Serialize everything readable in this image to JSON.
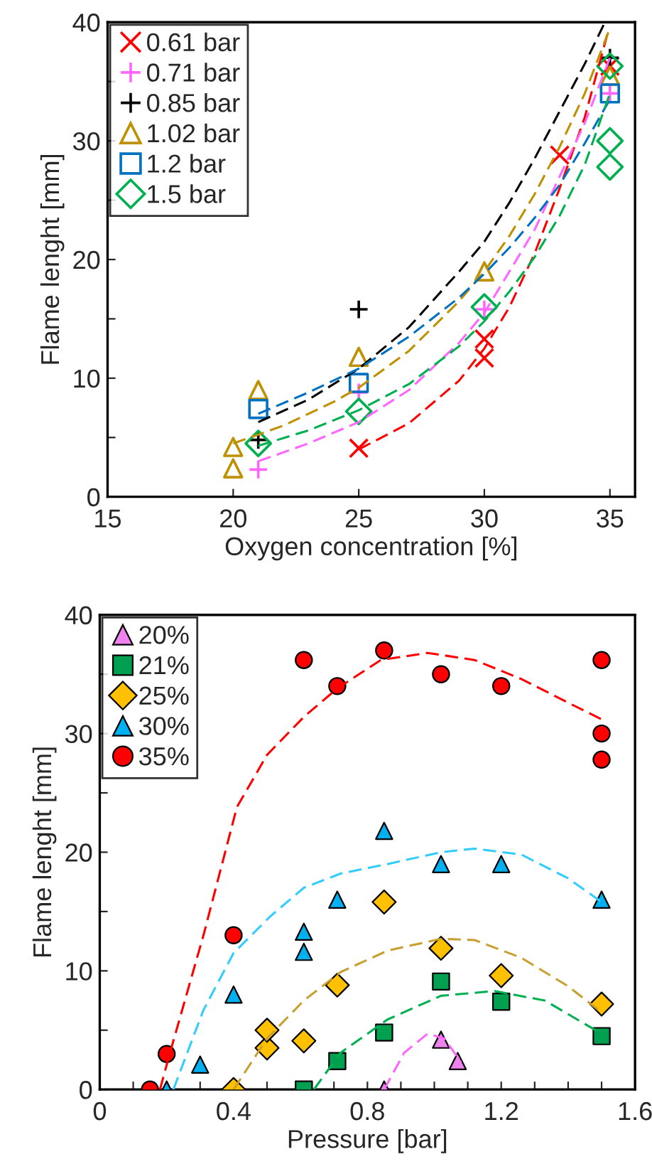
{
  "chart_data": [
    {
      "type": "scatter",
      "xlabel": "Oxygen concentration [%]",
      "ylabel": "Flame lenght [mm]",
      "xlim": [
        15,
        36
      ],
      "xticks": [
        15,
        20,
        25,
        30,
        35
      ],
      "ylim": [
        0,
        40
      ],
      "yticks": [
        0,
        {
          "value": 5,
          "label": null
        },
        10,
        {
          "value": 15,
          "label": null
        },
        20,
        {
          "value": 25,
          "label": null
        },
        30,
        {
          "value": 35,
          "label": null
        },
        40
      ],
      "grid": false,
      "legend": "top left",
      "series": [
        {
          "name": "0.61 bar",
          "color": "#ff0000",
          "marker": "x",
          "x": [
            25,
            30,
            30,
            33,
            35
          ],
          "values": [
            4.1,
            13.3,
            11.7,
            28.8,
            36.3
          ]
        },
        {
          "name": "0.71 bar",
          "color": "#ff66ff",
          "marker": "plus",
          "x": [
            21,
            25,
            30,
            35
          ],
          "values": [
            2.3,
            8.8,
            15.8,
            34
          ]
        },
        {
          "name": "0.85 bar",
          "color": "#000000",
          "marker": "plus",
          "x": [
            21,
            25,
            35
          ],
          "values": [
            4.8,
            15.8,
            37
          ]
        },
        {
          "name": "1.02 bar",
          "color": "#bf9000",
          "marker": "triangle",
          "x": [
            20,
            20,
            21,
            25,
            30,
            35
          ],
          "values": [
            4.2,
            2.4,
            9.0,
            11.8,
            19,
            35.5
          ]
        },
        {
          "name": "1.2 bar",
          "color": "#0070c0",
          "marker": "square",
          "x": [
            21,
            25,
            35
          ],
          "values": [
            7.4,
            9.6,
            34
          ]
        },
        {
          "name": "1.5 bar",
          "color": "#00b050",
          "marker": "diamond",
          "x": [
            21,
            25,
            30,
            35,
            35,
            35
          ],
          "values": [
            4.5,
            7.2,
            16,
            36.3,
            30,
            27.8
          ]
        },
        {
          "type": "line",
          "color": "#ff0000",
          "line_style": "dashed",
          "x": [
            25,
            27,
            29,
            30,
            31,
            32,
            33,
            34,
            34.9
          ],
          "values": [
            4,
            6.2,
            9.8,
            12.5,
            16,
            20.5,
            26,
            32,
            39
          ]
        },
        {
          "type": "line",
          "color": "#ff66ff",
          "line_style": "dashed",
          "x": [
            21,
            23,
            25,
            27,
            29,
            30,
            31,
            32,
            33,
            34,
            35
          ],
          "values": [
            3,
            4.5,
            6.3,
            9,
            13,
            15.5,
            19,
            22.5,
            27,
            31.5,
            37
          ]
        },
        {
          "type": "line",
          "color": "#000000",
          "line_style": "dashed",
          "x": [
            21,
            23,
            25,
            27,
            29,
            30,
            31,
            32,
            33,
            34,
            34.8
          ],
          "values": [
            6.3,
            8.2,
            10.8,
            14.3,
            19,
            21.5,
            24.8,
            28.5,
            32.5,
            36.5,
            40
          ]
        },
        {
          "type": "line",
          "color": "#bf9000",
          "line_style": "dashed",
          "x": [
            20,
            22,
            24,
            25,
            27,
            29,
            30,
            31,
            32,
            33,
            34,
            35
          ],
          "values": [
            4.5,
            6,
            8,
            9.2,
            12.3,
            16.5,
            19,
            22,
            25.5,
            29.5,
            34,
            39.5
          ]
        },
        {
          "type": "line",
          "color": "#0070c0",
          "line_style": "dashed",
          "x": [
            21,
            23,
            25,
            27,
            29,
            30,
            31,
            32,
            33,
            34,
            35
          ],
          "values": [
            7,
            8.8,
            10.8,
            13.5,
            16.8,
            18.8,
            21,
            23.5,
            26.3,
            29.8,
            33.5
          ]
        },
        {
          "type": "line",
          "color": "#00b050",
          "line_style": "dashed",
          "x": [
            21,
            23,
            25,
            27,
            29,
            30,
            31,
            32,
            33,
            34,
            35
          ],
          "values": [
            4.3,
            5.6,
            7.3,
            9.5,
            12.7,
            14.8,
            17.3,
            20.2,
            23.7,
            28,
            34
          ]
        }
      ]
    },
    {
      "type": "scatter",
      "xlabel": "Pressure [bar]",
      "ylabel": "Flame lenght [mm]",
      "xlim": [
        0,
        1.6
      ],
      "xticks": [
        0,
        {
          "value": 0.1,
          "label": null
        },
        {
          "value": 0.2,
          "label": null
        },
        {
          "value": 0.3,
          "label": null
        },
        0.4,
        {
          "value": 0.5,
          "label": null
        },
        {
          "value": 0.6,
          "label": null
        },
        {
          "value": 0.7,
          "label": null
        },
        0.8,
        {
          "value": 0.9,
          "label": null
        },
        {
          "value": 1.0,
          "label": null
        },
        {
          "value": 1.1,
          "label": null
        },
        1.2,
        {
          "value": 1.3,
          "label": null
        },
        {
          "value": 1.4,
          "label": null
        },
        {
          "value": 1.5,
          "label": null
        },
        1.6
      ],
      "ylim": [
        0,
        40
      ],
      "yticks": [
        0,
        {
          "value": 5,
          "label": null
        },
        10,
        {
          "value": 15,
          "label": null
        },
        20,
        {
          "value": 25,
          "label": null
        },
        30,
        {
          "value": 35,
          "label": null
        },
        40
      ],
      "grid": false,
      "legend": "top left",
      "series": [
        {
          "name": "20%",
          "color": "#ee82ee",
          "marker": "triangle",
          "x": [
            0.85,
            1.02,
            1.07
          ],
          "values": [
            0,
            4.2,
            2.4
          ]
        },
        {
          "name": "21%",
          "color": "#00a050",
          "marker": "square",
          "x": [
            0.61,
            0.71,
            0.85,
            1.02,
            1.2,
            1.5
          ],
          "values": [
            0,
            2.4,
            4.8,
            9.1,
            7.4,
            4.5
          ]
        },
        {
          "name": "25%",
          "color": "#ffc000",
          "marker": "diamond",
          "x": [
            0.4,
            0.5,
            0.5,
            0.61,
            0.71,
            0.85,
            1.02,
            1.2,
            1.5
          ],
          "values": [
            0,
            3.5,
            5,
            4.1,
            8.8,
            15.8,
            11.9,
            9.6,
            7.2
          ]
        },
        {
          "name": "30%",
          "color": "#00b0f0",
          "marker": "triangle",
          "x": [
            0.2,
            0.3,
            0.4,
            0.61,
            0.61,
            0.71,
            0.85,
            1.02,
            1.2,
            1.5
          ],
          "values": [
            0,
            2.1,
            8,
            13.3,
            11.6,
            16,
            21.8,
            19,
            19,
            16
          ]
        },
        {
          "name": "35%",
          "color": "#ff0000",
          "marker": "circle",
          "x": [
            0.15,
            0.2,
            0.4,
            0.61,
            0.71,
            0.85,
            1.02,
            1.2,
            1.5,
            1.5,
            1.5
          ],
          "values": [
            0,
            3,
            13,
            36.2,
            34,
            37,
            35,
            34,
            36.2,
            30,
            27.8
          ]
        },
        {
          "type": "line",
          "color": "#ff0000",
          "line_style": "dashed",
          "x": [
            0.18,
            0.21,
            0.31,
            0.41,
            0.5,
            0.61,
            0.71,
            0.84,
            0.98,
            1.12,
            1.26,
            1.4,
            1.5
          ],
          "values": [
            0,
            3.1,
            13,
            23.8,
            28.2,
            31.4,
            33.8,
            36.2,
            36.8,
            36.2,
            34.6,
            32.6,
            31.2
          ]
        },
        {
          "type": "line",
          "color": "#33ccff",
          "line_style": "dashed",
          "x": [
            0.22,
            0.31,
            0.4,
            0.51,
            0.61,
            0.72,
            0.86,
            1.02,
            1.12,
            1.26,
            1.4,
            1.5
          ],
          "values": [
            0,
            6.7,
            11.5,
            14.6,
            17,
            18.2,
            19,
            20,
            20.3,
            19.8,
            17.8,
            15.8
          ]
        },
        {
          "type": "line",
          "color": "#c8a030",
          "line_style": "dashed",
          "x": [
            0.4,
            0.5,
            0.61,
            0.72,
            0.86,
            1.02,
            1.12,
            1.26,
            1.4,
            1.5
          ],
          "values": [
            0,
            4.3,
            7.5,
            9.9,
            11.7,
            12.7,
            12.6,
            11.1,
            8.7,
            6.5
          ]
        },
        {
          "type": "line",
          "color": "#00b050",
          "line_style": "dashed",
          "x": [
            0.64,
            0.72,
            0.86,
            1.02,
            1.18,
            1.33,
            1.5
          ],
          "values": [
            0,
            3.1,
            5.9,
            7.9,
            8.3,
            7.5,
            4.7
          ]
        },
        {
          "type": "line",
          "color": "#ff66ff",
          "line_style": "dashed",
          "x": [
            0.85,
            0.91,
            0.98,
            1.03,
            1.08
          ],
          "values": [
            0,
            3.1,
            4.7,
            4.3,
            2.3
          ]
        }
      ]
    }
  ]
}
